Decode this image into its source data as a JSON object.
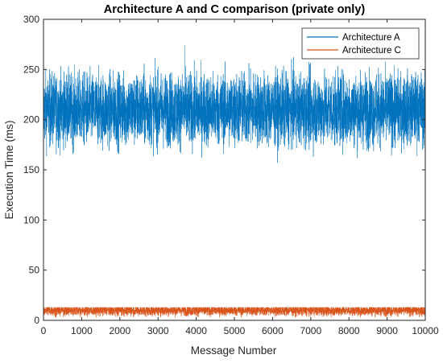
{
  "chart_data": {
    "type": "line",
    "title": "Architecture A and C comparison (private only)",
    "xlabel": "Message Number",
    "ylabel": "Execution Time (ms)",
    "xlim": [
      0,
      10000
    ],
    "ylim": [
      0,
      300
    ],
    "xticks": [
      0,
      1000,
      2000,
      3000,
      4000,
      5000,
      6000,
      7000,
      8000,
      9000,
      10000
    ],
    "yticks": [
      0,
      50,
      100,
      150,
      200,
      250,
      300
    ],
    "grid": false,
    "legend_position": "top-right",
    "series": [
      {
        "name": "Architecture A",
        "color": "#0072BD",
        "num_points": 10000,
        "approx_mean": 210,
        "approx_min": 157,
        "approx_max": 274,
        "peak_at_x": 3700,
        "typical_band": [
          175,
          245
        ]
      },
      {
        "name": "Architecture C",
        "color": "#D95319",
        "num_points": 10000,
        "approx_mean": 10,
        "approx_min": 3,
        "approx_max": 19,
        "typical_band": [
          5,
          16
        ]
      }
    ]
  }
}
